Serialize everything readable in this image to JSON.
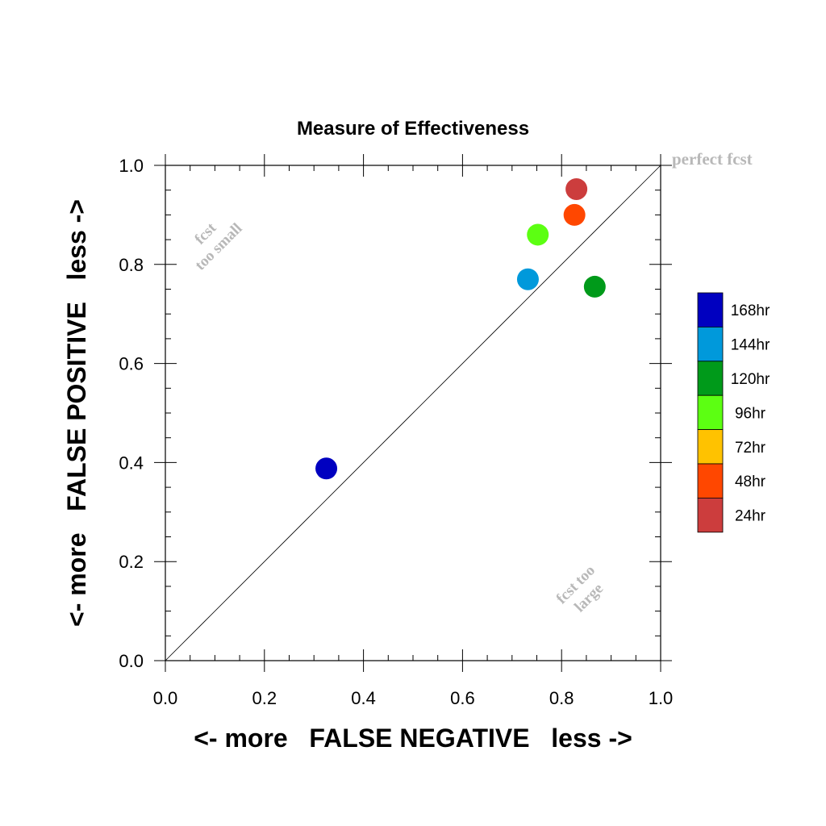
{
  "chart_data": {
    "type": "scatter",
    "title": "Measure of Effectiveness",
    "xlabel": "<- more   FALSE NEGATIVE   less ->",
    "ylabel": "<- more   FALSE POSITIVE   less ->",
    "xlim": [
      0.0,
      1.0
    ],
    "ylim": [
      0.0,
      1.0
    ],
    "xticks": [
      "0.0",
      "0.2",
      "0.4",
      "0.6",
      "0.8",
      "1.0"
    ],
    "yticks": [
      "0.0",
      "0.2",
      "0.4",
      "0.6",
      "0.8",
      "1.0"
    ],
    "grid": false,
    "reference_line": "diagonal y = x",
    "annotations": {
      "perfect": "perfect fcst",
      "small_line1": "fcst",
      "small_line2": "too small",
      "large_line1": "fcst too",
      "large_line2": "large"
    },
    "legend_position": "right",
    "legend": [
      {
        "label": "168hr",
        "color": "#0000c0"
      },
      {
        "label": "144hr",
        "color": "#0099db"
      },
      {
        "label": "120hr",
        "color": "#009a1a"
      },
      {
        "label": "96hr",
        "color": "#5cff12"
      },
      {
        "label": "72hr",
        "color": "#ffc200"
      },
      {
        "label": "48hr",
        "color": "#ff4700"
      },
      {
        "label": "24hr",
        "color": "#cc3d3d"
      }
    ],
    "points": [
      {
        "series": "168hr",
        "x": 0.325,
        "y": 0.388,
        "color": "#0000c0"
      },
      {
        "series": "144hr",
        "x": 0.732,
        "y": 0.77,
        "color": "#0099db"
      },
      {
        "series": "120hr",
        "x": 0.867,
        "y": 0.755,
        "color": "#009a1a"
      },
      {
        "series": "96hr",
        "x": 0.752,
        "y": 0.86,
        "color": "#5cff12"
      },
      {
        "series": "48hr",
        "x": 0.826,
        "y": 0.9,
        "color": "#ff4700"
      },
      {
        "series": "24hr",
        "x": 0.83,
        "y": 0.952,
        "color": "#cc3d3d"
      }
    ]
  }
}
